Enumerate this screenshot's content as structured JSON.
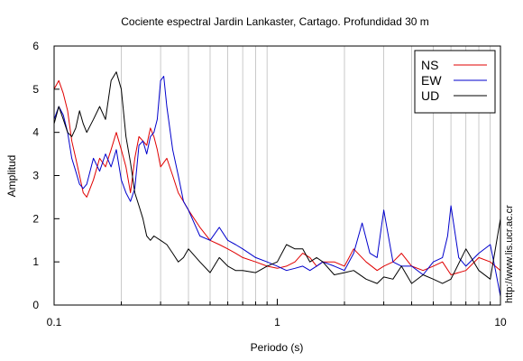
{
  "chart_data": {
    "type": "line",
    "title": "Cociente espectral Jardin Lankaster, Cartago. Profundidad 30 m",
    "xlabel": "Periodo (s)",
    "ylabel": "Amplitud",
    "xscale": "log",
    "xlim": [
      0.1,
      10
    ],
    "ylim": [
      0,
      6
    ],
    "x_tick_labels": [
      "0.1",
      "1",
      "10"
    ],
    "y_tick_labels": [
      "0",
      "1",
      "2",
      "3",
      "4",
      "5",
      "6"
    ],
    "grid": "vertical log gridlines only",
    "legend_position": "top-right",
    "watermark": "http://www.lis.ucr.ac.cr",
    "series": [
      {
        "name": "NS",
        "color": "#e00000",
        "x": [
          0.1,
          0.105,
          0.11,
          0.115,
          0.12,
          0.125,
          0.13,
          0.135,
          0.14,
          0.15,
          0.16,
          0.17,
          0.18,
          0.19,
          0.2,
          0.21,
          0.22,
          0.23,
          0.24,
          0.25,
          0.26,
          0.27,
          0.28,
          0.29,
          0.3,
          0.32,
          0.34,
          0.36,
          0.38,
          0.4,
          0.45,
          0.5,
          0.55,
          0.6,
          0.65,
          0.7,
          0.8,
          0.9,
          1.0,
          1.1,
          1.2,
          1.3,
          1.4,
          1.5,
          1.6,
          1.8,
          2.0,
          2.2,
          2.5,
          2.8,
          3.0,
          3.3,
          3.6,
          4.0,
          4.5,
          5.0,
          5.5,
          6.0,
          7.0,
          8.0,
          9.0,
          10.0
        ],
        "values": [
          5.0,
          5.2,
          4.9,
          4.5,
          3.8,
          3.4,
          3.0,
          2.6,
          2.5,
          2.9,
          3.4,
          3.2,
          3.6,
          4.0,
          3.6,
          3.2,
          2.6,
          3.4,
          3.9,
          3.8,
          3.7,
          4.1,
          3.9,
          3.6,
          3.2,
          3.4,
          3.0,
          2.6,
          2.4,
          2.2,
          1.8,
          1.5,
          1.4,
          1.3,
          1.2,
          1.1,
          1.0,
          0.9,
          0.85,
          0.9,
          1.0,
          1.2,
          1.1,
          0.9,
          1.0,
          1.0,
          0.9,
          1.3,
          1.0,
          0.8,
          0.9,
          1.0,
          1.2,
          0.9,
          0.8,
          0.9,
          1.0,
          0.7,
          0.8,
          1.1,
          1.0,
          0.8
        ]
      },
      {
        "name": "EW",
        "color": "#0000cc",
        "x": [
          0.1,
          0.105,
          0.11,
          0.115,
          0.12,
          0.125,
          0.13,
          0.135,
          0.14,
          0.15,
          0.16,
          0.17,
          0.18,
          0.19,
          0.2,
          0.21,
          0.22,
          0.23,
          0.24,
          0.25,
          0.26,
          0.27,
          0.28,
          0.29,
          0.3,
          0.31,
          0.32,
          0.34,
          0.36,
          0.38,
          0.4,
          0.45,
          0.5,
          0.55,
          0.6,
          0.65,
          0.7,
          0.8,
          0.9,
          1.0,
          1.1,
          1.2,
          1.3,
          1.4,
          1.5,
          1.6,
          1.8,
          2.0,
          2.2,
          2.4,
          2.6,
          2.8,
          3.0,
          3.3,
          3.6,
          4.0,
          4.5,
          5.0,
          5.5,
          5.8,
          6.0,
          6.5,
          7.0,
          8.0,
          9.0,
          9.5,
          10.0
        ],
        "values": [
          4.3,
          4.6,
          4.4,
          4.0,
          3.4,
          3.1,
          2.8,
          2.7,
          2.8,
          3.4,
          3.1,
          3.5,
          3.2,
          3.6,
          2.9,
          2.6,
          2.4,
          2.7,
          3.7,
          3.8,
          3.5,
          3.9,
          4.0,
          4.3,
          5.2,
          5.3,
          4.6,
          3.6,
          3.0,
          2.4,
          2.2,
          1.6,
          1.5,
          1.8,
          1.5,
          1.4,
          1.3,
          1.1,
          1.0,
          0.9,
          0.8,
          0.85,
          0.9,
          0.8,
          0.9,
          1.0,
          0.9,
          0.8,
          1.2,
          1.9,
          1.2,
          1.1,
          2.2,
          1.0,
          0.9,
          0.9,
          0.7,
          1.0,
          1.1,
          1.6,
          2.3,
          1.1,
          0.9,
          1.2,
          1.4,
          0.8,
          0.2
        ]
      },
      {
        "name": "UD",
        "color": "#000000",
        "x": [
          0.1,
          0.105,
          0.11,
          0.115,
          0.12,
          0.125,
          0.13,
          0.135,
          0.14,
          0.15,
          0.16,
          0.17,
          0.18,
          0.19,
          0.2,
          0.21,
          0.22,
          0.23,
          0.24,
          0.25,
          0.26,
          0.27,
          0.28,
          0.3,
          0.32,
          0.34,
          0.36,
          0.38,
          0.4,
          0.45,
          0.5,
          0.55,
          0.6,
          0.65,
          0.7,
          0.8,
          0.9,
          1.0,
          1.1,
          1.2,
          1.3,
          1.4,
          1.5,
          1.6,
          1.8,
          2.0,
          2.2,
          2.5,
          2.8,
          3.0,
          3.3,
          3.6,
          4.0,
          4.5,
          5.0,
          5.5,
          6.0,
          7.0,
          8.0,
          9.0,
          10.0
        ],
        "values": [
          4.2,
          4.6,
          4.3,
          4.0,
          3.9,
          4.1,
          4.5,
          4.2,
          4.0,
          4.3,
          4.6,
          4.3,
          5.2,
          5.4,
          5.0,
          3.9,
          3.3,
          2.6,
          2.3,
          2.0,
          1.6,
          1.5,
          1.6,
          1.5,
          1.4,
          1.2,
          1.0,
          1.1,
          1.3,
          1.0,
          0.75,
          1.1,
          0.9,
          0.8,
          0.8,
          0.75,
          0.9,
          1.0,
          1.4,
          1.3,
          1.3,
          1.0,
          1.1,
          1.0,
          0.7,
          0.75,
          0.8,
          0.6,
          0.5,
          0.65,
          0.6,
          0.9,
          0.5,
          0.7,
          0.6,
          0.5,
          0.6,
          1.3,
          0.8,
          0.6,
          2.0
        ]
      }
    ]
  }
}
